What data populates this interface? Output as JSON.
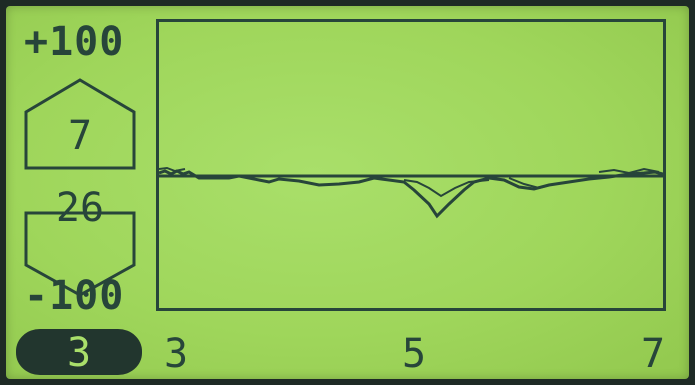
{
  "scale": {
    "top_label": "+100",
    "bottom_label": "-100"
  },
  "indicators": {
    "upper_value": "7",
    "lower_value": "26"
  },
  "mode": {
    "selected": "3"
  },
  "x_axis": {
    "ticks": [
      "3",
      "5",
      "7"
    ]
  },
  "colors": {
    "lcd_background": "#a2d860",
    "lcd_ink": "#27453a",
    "bezel": "#1e2a25"
  }
}
